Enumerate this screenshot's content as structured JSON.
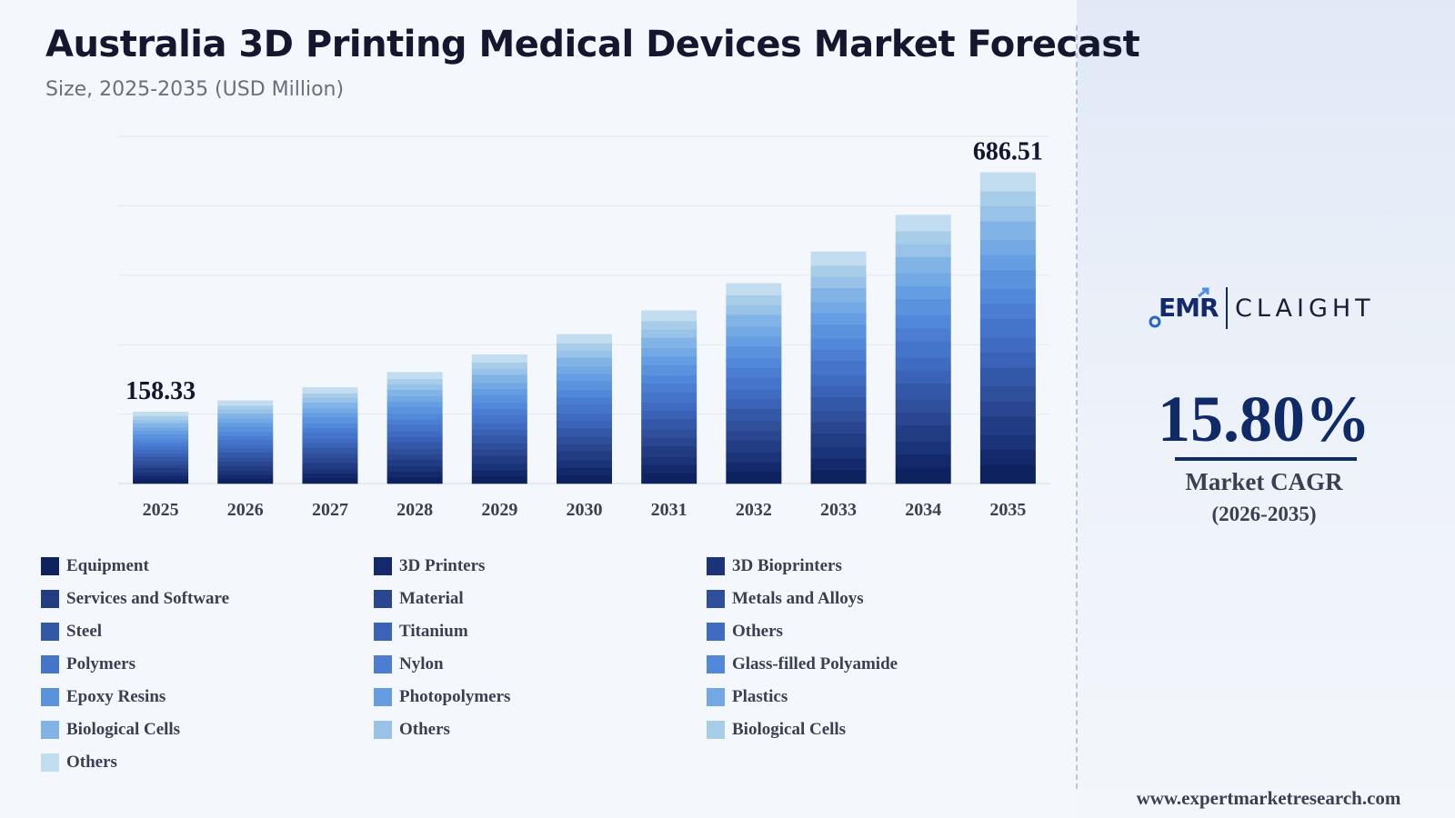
{
  "header": {
    "title": "Australia 3D Printing Medical Devices Market Forecast",
    "subtitle": "Size, 2025-2035 (USD Million)"
  },
  "chart_data": {
    "type": "bar",
    "stacked": true,
    "title": "Australia 3D Printing Medical Devices Market Forecast",
    "subtitle": "Size, 2025-2035 (USD Million)",
    "categories": [
      "2025",
      "2026",
      "2027",
      "2028",
      "2029",
      "2030",
      "2031",
      "2032",
      "2033",
      "2034",
      "2035"
    ],
    "totals": [
      158.33,
      183.35,
      212.32,
      245.87,
      284.72,
      329.7,
      381.8,
      442.12,
      511.97,
      592.87,
      686.51
    ],
    "labeled_values": [
      {
        "category": "2025",
        "value": "158.33"
      },
      {
        "category": "2035",
        "value": "686.51"
      }
    ],
    "ylim": [
      0,
      766
    ],
    "grid": true,
    "legend_position": "bottom",
    "series": [
      {
        "name": "Equipment",
        "color": "#0e2260"
      },
      {
        "name": "3D Printers",
        "color": "#13296c"
      },
      {
        "name": "3D Bioprinters",
        "color": "#1b3378"
      },
      {
        "name": "Services and Software",
        "color": "#223c84"
      },
      {
        "name": "Material",
        "color": "#2a4690"
      },
      {
        "name": "Metals and Alloys",
        "color": "#2f4f9b"
      },
      {
        "name": "Steel",
        "color": "#3458a8"
      },
      {
        "name": "Titanium",
        "color": "#3a62b6"
      },
      {
        "name": "Others",
        "color": "#3f6bc1"
      },
      {
        "name": "Polymers",
        "color": "#4574cb"
      },
      {
        "name": "Nylon",
        "color": "#4b7ed3"
      },
      {
        "name": "Glass-filled Polyamide",
        "color": "#5288da"
      },
      {
        "name": "Epoxy Resins",
        "color": "#5a92de"
      },
      {
        "name": "Photopolymers",
        "color": "#649de2"
      },
      {
        "name": "Plastics",
        "color": "#72a8e4"
      },
      {
        "name": "Biological Cells",
        "color": "#82b3e6"
      },
      {
        "name": "Others",
        "color": "#98c2e7"
      },
      {
        "name": "Biological Cells",
        "color": "#a8cde8"
      },
      {
        "name": "Others",
        "color": "#c2dcf0"
      }
    ]
  },
  "side_panel": {
    "logo": {
      "left_text": "EMR",
      "right_text": "CLAIGHT"
    },
    "cagr_value": "15.80%",
    "cagr_label": "Market CAGR",
    "cagr_period": "(2026-2035)",
    "website": "www.expertmarketresearch.com"
  },
  "colors": {
    "title": "#14172e",
    "accent": "#0f2a66",
    "background": "#f4f7fb"
  }
}
